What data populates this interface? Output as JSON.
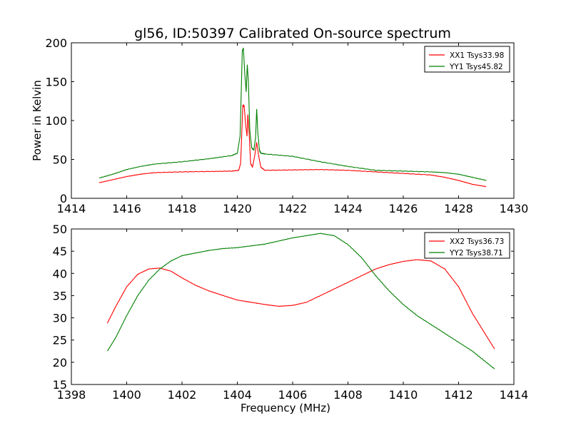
{
  "title": "gl56, ID:50397 Calibrated On-source spectrum",
  "colors": {
    "xx": "#ff0000",
    "yy": "#007f00",
    "axes": "#000000",
    "background": "#ffffff"
  },
  "chart_data": [
    {
      "type": "line",
      "panel": "top",
      "title": "gl56, ID:50397 Calibrated On-source spectrum",
      "xlabel": "",
      "ylabel": "Power in Kelvin",
      "xlim": [
        1414,
        1430
      ],
      "ylim": [
        0,
        200
      ],
      "xticks": [
        1414,
        1416,
        1418,
        1420,
        1422,
        1424,
        1426,
        1428,
        1430
      ],
      "yticks": [
        0,
        50,
        100,
        150,
        200
      ],
      "grid": false,
      "legend_position": "top-right",
      "series": [
        {
          "name": "XX1 Tsys33.98",
          "color": "#ff0000",
          "x": [
            1415.0,
            1415.5,
            1416.0,
            1416.5,
            1417.0,
            1418.0,
            1419.0,
            1419.8,
            1420.05,
            1420.12,
            1420.2,
            1420.25,
            1420.3,
            1420.35,
            1420.38,
            1420.43,
            1420.48,
            1420.55,
            1420.63,
            1420.7,
            1420.77,
            1420.85,
            1421.0,
            1422.0,
            1423.0,
            1424.0,
            1425.0,
            1426.0,
            1427.0,
            1427.5,
            1428.0,
            1428.5,
            1429.0
          ],
          "y": [
            20,
            24,
            28,
            31,
            33,
            34,
            34.5,
            35,
            36,
            45,
            120,
            118,
            95,
            80,
            108,
            82,
            45,
            40,
            55,
            72,
            55,
            40,
            36,
            36.5,
            37,
            36,
            34,
            32,
            30,
            27,
            23,
            18,
            15
          ]
        },
        {
          "name": "YY1 Tsys45.82",
          "color": "#007f00",
          "x": [
            1415.0,
            1415.5,
            1416.0,
            1416.5,
            1417.0,
            1418.0,
            1419.0,
            1419.8,
            1420.0,
            1420.1,
            1420.18,
            1420.22,
            1420.27,
            1420.32,
            1420.36,
            1420.4,
            1420.45,
            1420.52,
            1420.6,
            1420.66,
            1420.7,
            1420.74,
            1420.8,
            1420.85,
            1421.0,
            1422.0,
            1423.0,
            1424.0,
            1425.0,
            1426.0,
            1427.0,
            1427.5,
            1428.0,
            1428.5,
            1429.0
          ],
          "y": [
            26,
            31,
            37,
            41,
            44,
            47,
            51,
            55,
            58,
            80,
            190,
            193,
            160,
            137,
            172,
            150,
            88,
            65,
            62,
            78,
            115,
            85,
            62,
            58,
            57,
            54,
            47,
            41,
            36,
            35,
            34,
            33,
            31,
            27,
            23
          ]
        }
      ]
    },
    {
      "type": "line",
      "panel": "bottom",
      "title": "",
      "xlabel": "Frequency (MHz)",
      "ylabel": "",
      "xlim": [
        1398,
        1414
      ],
      "ylim": [
        15,
        50
      ],
      "xticks": [
        1398,
        1400,
        1402,
        1404,
        1406,
        1408,
        1410,
        1412,
        1414
      ],
      "yticks": [
        15,
        20,
        25,
        30,
        35,
        40,
        45,
        50
      ],
      "grid": false,
      "legend_position": "top-right",
      "series": [
        {
          "name": "XX2 Tsys36.73",
          "color": "#ff0000",
          "x": [
            1399.3,
            1399.6,
            1400.0,
            1400.4,
            1400.8,
            1401.2,
            1401.6,
            1402.0,
            1402.5,
            1403.0,
            1403.5,
            1404.0,
            1404.5,
            1405.0,
            1405.5,
            1406.0,
            1406.5,
            1407.0,
            1407.5,
            1408.0,
            1408.5,
            1409.0,
            1409.5,
            1410.0,
            1410.5,
            1411.0,
            1411.5,
            1412.0,
            1412.5,
            1413.0,
            1413.3
          ],
          "y": [
            28.8,
            32.5,
            37,
            39.8,
            41,
            41.2,
            40.5,
            39,
            37.3,
            36,
            35,
            34,
            33.5,
            33,
            32.6,
            32.8,
            33.5,
            35,
            36.5,
            38,
            39.5,
            41,
            42,
            42.7,
            43.1,
            42.8,
            41,
            37,
            31,
            26,
            23
          ]
        },
        {
          "name": "YY2 Tsys38.71",
          "color": "#007f00",
          "x": [
            1399.3,
            1399.6,
            1400.0,
            1400.4,
            1400.8,
            1401.2,
            1401.6,
            1402.0,
            1402.5,
            1403.0,
            1403.5,
            1404.0,
            1404.5,
            1405.0,
            1405.5,
            1406.0,
            1406.5,
            1407.0,
            1407.5,
            1408.0,
            1408.5,
            1409.0,
            1409.5,
            1410.0,
            1410.5,
            1411.0,
            1411.5,
            1412.0,
            1412.5,
            1413.0,
            1413.3
          ],
          "y": [
            22.5,
            25.5,
            30.5,
            35,
            38.5,
            41,
            42.8,
            44,
            44.6,
            45.2,
            45.6,
            45.8,
            46.2,
            46.6,
            47.3,
            48,
            48.5,
            49,
            48.5,
            46.5,
            43.5,
            39.5,
            36,
            33,
            30.5,
            28.5,
            26.5,
            24.5,
            22.5,
            20,
            18.5
          ]
        }
      ]
    }
  ]
}
